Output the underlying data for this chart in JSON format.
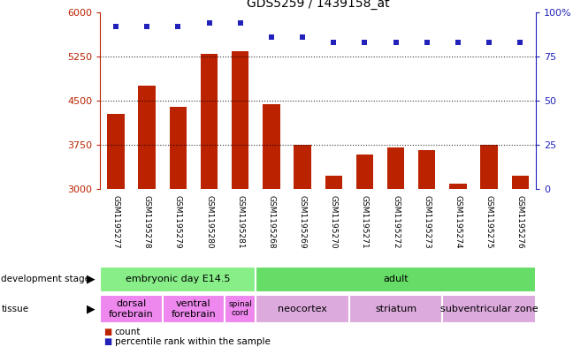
{
  "title": "GDS5259 / 1439158_at",
  "samples": [
    "GSM1195277",
    "GSM1195278",
    "GSM1195279",
    "GSM1195280",
    "GSM1195281",
    "GSM1195268",
    "GSM1195269",
    "GSM1195270",
    "GSM1195271",
    "GSM1195272",
    "GSM1195273",
    "GSM1195274",
    "GSM1195275",
    "GSM1195276"
  ],
  "counts": [
    4280,
    4750,
    4390,
    5290,
    5340,
    4440,
    3750,
    3230,
    3590,
    3700,
    3660,
    3090,
    3750,
    3230
  ],
  "percentiles": [
    92,
    92,
    92,
    94,
    94,
    86,
    86,
    83,
    83,
    83,
    83,
    83,
    83,
    83
  ],
  "ymin": 3000,
  "ymax": 6000,
  "yticks": [
    3000,
    3750,
    4500,
    5250,
    6000
  ],
  "ytick_labels": [
    "3000",
    "3750",
    "4500",
    "5250",
    "6000"
  ],
  "right_yticks": [
    0,
    25,
    50,
    75,
    100
  ],
  "bar_color": "#bb2200",
  "dot_color": "#2222bb",
  "plot_bg": "#ffffff",
  "sample_label_bg": "#d8d8d8",
  "dev_stage_groups": [
    {
      "label": "embryonic day E14.5",
      "start": 0,
      "end": 5,
      "color": "#88ee88"
    },
    {
      "label": "adult",
      "start": 5,
      "end": 14,
      "color": "#66dd66"
    }
  ],
  "tissue_groups": [
    {
      "label": "dorsal\nforebrain",
      "start": 0,
      "end": 2,
      "color": "#ee88ee"
    },
    {
      "label": "ventral\nforebrain",
      "start": 2,
      "end": 4,
      "color": "#ee88ee"
    },
    {
      "label": "spinal\ncord",
      "start": 4,
      "end": 5,
      "color": "#ee88ee"
    },
    {
      "label": "neocortex",
      "start": 5,
      "end": 8,
      "color": "#ddaadd"
    },
    {
      "label": "striatum",
      "start": 8,
      "end": 11,
      "color": "#ddaadd"
    },
    {
      "label": "subventricular zone",
      "start": 11,
      "end": 14,
      "color": "#ddaadd"
    }
  ],
  "n_samples": 14,
  "fig_width": 6.48,
  "fig_height": 3.93
}
